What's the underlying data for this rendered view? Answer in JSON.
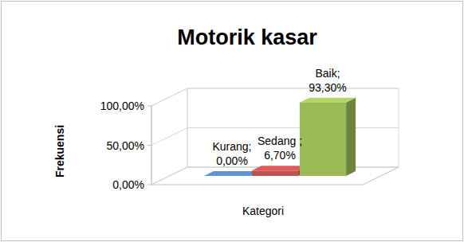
{
  "chart_data": {
    "type": "bar",
    "title": "Motorik kasar",
    "x_label": "Kategori",
    "y_label": "Frekuensi",
    "categories": [
      null,
      null,
      null
    ],
    "values": [
      0,
      6.7,
      93.3
    ],
    "value_labels": [
      "Kurang; 0,00%",
      "Sedang ; 6,70%",
      "Baik; 93,30%"
    ],
    "colors": [
      "#4f81bd",
      "#c0504d",
      "#9bbb59"
    ],
    "ylim": [
      0,
      100
    ],
    "yticks": [
      {
        "value": 0,
        "label": "0,00%"
      },
      {
        "value": 50,
        "label": "50,00%"
      },
      {
        "value": 100,
        "label": "100,00%"
      }
    ],
    "grid": true,
    "data_labels": true,
    "tick_labels": "y"
  }
}
